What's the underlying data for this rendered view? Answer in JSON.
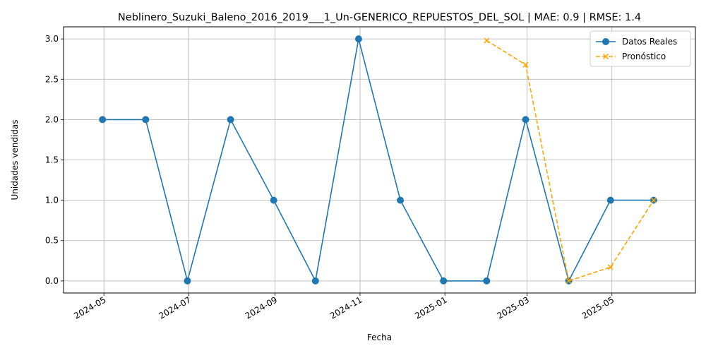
{
  "chart_data": {
    "type": "line",
    "title": "Neblinero_Suzuki_Baleno_2016_2019___1_Un-GENERICO_REPUESTOS_DEL_SOL | MAE: 0.9 | RMSE: 1.4",
    "xlabel": "Fecha",
    "ylabel": "Unidades vendidas",
    "xlim": [
      "2024-04-02",
      "2025-06-30"
    ],
    "ylim": [
      -0.15,
      3.15
    ],
    "x_ticks": [
      "2024-05-01",
      "2024-07-01",
      "2024-09-01",
      "2024-11-01",
      "2025-01-01",
      "2025-03-01",
      "2025-05-01"
    ],
    "x_tick_labels": [
      "2024-05",
      "2024-07",
      "2024-09",
      "2024-11",
      "2025-01",
      "2025-03",
      "2025-05"
    ],
    "y_ticks": [
      0.0,
      0.5,
      1.0,
      1.5,
      2.0,
      2.5,
      3.0
    ],
    "y_tick_labels": [
      "0.0",
      "0.5",
      "1.0",
      "1.5",
      "2.0",
      "2.5",
      "3.0"
    ],
    "grid": true,
    "legend_position": "top-right",
    "series": [
      {
        "name": "Datos Reales",
        "color": "#1f77b4",
        "style": "solid",
        "marker": "circle",
        "x": [
          "2024-04-30",
          "2024-05-31",
          "2024-06-30",
          "2024-07-31",
          "2024-08-31",
          "2024-09-30",
          "2024-10-31",
          "2024-11-30",
          "2024-12-31",
          "2025-01-31",
          "2025-02-28",
          "2025-03-31",
          "2025-04-30",
          "2025-05-31"
        ],
        "values": [
          2,
          2,
          0,
          2,
          1,
          0,
          3,
          1,
          0,
          0,
          2,
          0,
          1,
          1
        ]
      },
      {
        "name": "Pronóstico",
        "color": "#ffa500",
        "style": "dashed",
        "marker": "x",
        "x": [
          "2025-01-31",
          "2025-02-28",
          "2025-03-31",
          "2025-04-30",
          "2025-05-31"
        ],
        "values": [
          2.98,
          2.68,
          0.0,
          0.17,
          1.0
        ]
      }
    ]
  }
}
